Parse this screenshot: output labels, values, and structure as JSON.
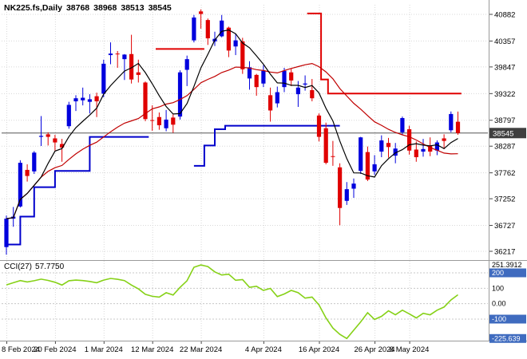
{
  "header": {
    "symbol_period": "NK225.fs,Daily",
    "open": "38768",
    "high": "38968",
    "low": "38513",
    "close": "38545"
  },
  "chart_data": {
    "type": "candlestick",
    "title": "NK225.fs,Daily",
    "symbol": "NK225.fs",
    "timeframe": "Daily",
    "ohlc_display": [
      38768,
      38968,
      38513,
      38545
    ],
    "current_price": 38545,
    "y_axis": {
      "ticks": [
        40882,
        40357,
        39847,
        39322,
        38797,
        38287,
        37762,
        37252,
        36727,
        36217
      ]
    },
    "x_axis": {
      "ticks": [
        {
          "label": "8 Feb 2024",
          "i": 0
        },
        {
          "label": "20 Feb 2024",
          "i": 7
        },
        {
          "label": "1 Mar 2024",
          "i": 14
        },
        {
          "label": "12 Mar 2024",
          "i": 21
        },
        {
          "label": "22 Mar 2024",
          "i": 28
        },
        {
          "label": "4 Apr 2024",
          "i": 37
        },
        {
          "label": "16 Apr 2024",
          "i": 45
        },
        {
          "label": "26 Apr 2024",
          "i": 53
        },
        {
          "label": "8 May 2024",
          "i": 58
        }
      ]
    },
    "candles": [
      [
        36300,
        36920,
        36150,
        36860
      ],
      [
        36860,
        37090,
        36700,
        36900
      ],
      [
        37100,
        38010,
        37080,
        37960
      ],
      [
        37820,
        37930,
        37590,
        37700
      ],
      [
        37790,
        38190,
        37740,
        38160
      ],
      [
        38470,
        38880,
        38290,
        38490
      ],
      [
        38520,
        38560,
        38300,
        38470
      ],
      [
        38440,
        38510,
        38200,
        38360
      ],
      [
        38330,
        38430,
        37980,
        38260
      ],
      [
        38680,
        39160,
        38630,
        39100
      ],
      [
        39170,
        39290,
        38980,
        39230
      ],
      [
        39190,
        39440,
        39090,
        39240
      ],
      [
        39160,
        39310,
        38930,
        39210
      ],
      [
        39270,
        39340,
        38860,
        39170
      ],
      [
        39320,
        39990,
        39250,
        39910
      ],
      [
        40080,
        40330,
        39900,
        40110
      ],
      [
        40110,
        40160,
        39830,
        40100
      ],
      [
        40000,
        40100,
        39590,
        40090
      ],
      [
        40100,
        40480,
        39520,
        39600
      ],
      [
        39740,
        39990,
        39540,
        39690
      ],
      [
        39540,
        39560,
        38780,
        38820
      ],
      [
        38800,
        39090,
        38590,
        38790
      ],
      [
        38860,
        38950,
        38610,
        38700
      ],
      [
        38640,
        39000,
        38580,
        38810
      ],
      [
        38850,
        38910,
        38550,
        38710
      ],
      [
        38870,
        39780,
        38810,
        39740
      ],
      [
        39790,
        40070,
        39470,
        40000
      ],
      [
        40370,
        40870,
        40330,
        40820
      ],
      [
        40940,
        40980,
        40600,
        40890
      ],
      [
        40770,
        40800,
        40280,
        40410
      ],
      [
        40350,
        40540,
        40260,
        40400
      ],
      [
        40450,
        40870,
        40430,
        40760
      ],
      [
        40620,
        40640,
        40040,
        40170
      ],
      [
        40250,
        40500,
        40080,
        40370
      ],
      [
        40350,
        40420,
        39710,
        39800
      ],
      [
        39620,
        39960,
        39400,
        39840
      ],
      [
        39690,
        39710,
        39280,
        39450
      ],
      [
        39520,
        39880,
        39450,
        39770
      ],
      [
        39290,
        39440,
        38770,
        38990
      ],
      [
        39130,
        39460,
        39050,
        39350
      ],
      [
        39450,
        39830,
        39350,
        39770
      ],
      [
        39740,
        39820,
        39470,
        39580
      ],
      [
        39310,
        39570,
        39060,
        39440
      ],
      [
        39500,
        39680,
        39380,
        39520
      ],
      [
        39390,
        39610,
        39170,
        39230
      ],
      [
        38890,
        38930,
        38380,
        38470
      ],
      [
        38640,
        38750,
        37930,
        37960
      ],
      [
        38090,
        38390,
        37900,
        38080
      ],
      [
        37870,
        37950,
        36730,
        37070
      ],
      [
        37210,
        37580,
        37130,
        37440
      ],
      [
        37450,
        37650,
        37270,
        37550
      ],
      [
        37800,
        38470,
        37740,
        38460
      ],
      [
        38170,
        38280,
        37600,
        37630
      ],
      [
        37790,
        38110,
        37720,
        37930
      ],
      [
        38180,
        38500,
        38070,
        38400
      ],
      [
        38350,
        38450,
        38060,
        38270
      ],
      [
        38100,
        38350,
        37950,
        38240
      ],
      [
        38560,
        38870,
        38510,
        38840
      ],
      [
        38620,
        38690,
        38120,
        38200
      ],
      [
        38220,
        38380,
        37980,
        38070
      ],
      [
        38180,
        38430,
        38080,
        38230
      ],
      [
        38290,
        38460,
        38090,
        38180
      ],
      [
        38200,
        38400,
        38110,
        38360
      ],
      [
        38440,
        38520,
        38230,
        38390
      ],
      [
        38600,
        38970,
        38560,
        38920
      ],
      [
        38768,
        38968,
        38513,
        38545
      ]
    ],
    "overlays": {
      "ma_fast": {
        "period": 6,
        "color": "#000000"
      },
      "ma_slow": {
        "period": 20,
        "color": "#c00000"
      },
      "support_steps": {
        "color": "#0000cc",
        "segments": [
          [
            [
              0,
              36350
            ],
            [
              2,
              36350
            ],
            [
              2,
              36900
            ],
            [
              4,
              36900
            ],
            [
              4,
              37480
            ],
            [
              7,
              37480
            ],
            [
              7,
              37800
            ],
            [
              12,
              37800
            ],
            [
              12,
              38470
            ],
            [
              20.5,
              38470
            ]
          ],
          [
            [
              27,
              37900
            ],
            [
              28.5,
              37900
            ],
            [
              28.5,
              38300
            ],
            [
              30,
              38300
            ],
            [
              30,
              38620
            ],
            [
              31.5,
              38620
            ],
            [
              31.5,
              38690
            ],
            [
              48,
              38690
            ]
          ]
        ]
      },
      "resistance_steps": {
        "color": "#e00000",
        "segments": [
          [
            [
              21.5,
              40200
            ],
            [
              28.5,
              40200
            ]
          ],
          [
            [
              43.3,
              40900
            ],
            [
              45.3,
              40900
            ],
            [
              45.3,
              39600
            ],
            [
              46.3,
              39600
            ],
            [
              46.3,
              39322
            ],
            [
              65.5,
              39322
            ]
          ]
        ]
      }
    },
    "indicator": {
      "label": "CCI(27)",
      "value": "57.7750",
      "color": "#86d117",
      "levels": [
        200,
        100,
        0,
        -100
      ],
      "scale": [
        {
          "label": "251.3912",
          "v": 251.3912,
          "badge": false
        },
        {
          "label": "200",
          "v": 200,
          "badge": true
        },
        {
          "label": "100",
          "v": 100,
          "badge": false
        },
        {
          "label": "0.00",
          "v": 0,
          "badge": false
        },
        {
          "label": "-100",
          "v": -100,
          "badge": true
        },
        {
          "label": "-225.639",
          "v": -225.639,
          "badge": true
        }
      ],
      "values": [
        122,
        136,
        150,
        141,
        149,
        159,
        151,
        139,
        121,
        149,
        153,
        150,
        144,
        136,
        153,
        164,
        158,
        150,
        121,
        96,
        61,
        48,
        43,
        71,
        56,
        106,
        149,
        236,
        251.4,
        241,
        206,
        186,
        191,
        152,
        156,
        106,
        113,
        86,
        99,
        46,
        63,
        86,
        71,
        36,
        43,
        -8,
        -92,
        -158,
        -199,
        -225.6,
        -172,
        -118,
        -58,
        -102,
        -82,
        -46,
        -72,
        -42,
        -66,
        -92,
        -62,
        -72,
        -42,
        -22,
        24,
        57.8
      ]
    }
  },
  "colors": {
    "bull": "#0000dd",
    "bear": "#e00000",
    "grid": "#d8d8d8",
    "grid_level": "#c8c8c8",
    "price_line": "#555555",
    "divider": "#9a9a9a",
    "badge_blue": "#3f6bbf",
    "badge_dark": "#3f3f3f",
    "axis_text": "#000000"
  }
}
